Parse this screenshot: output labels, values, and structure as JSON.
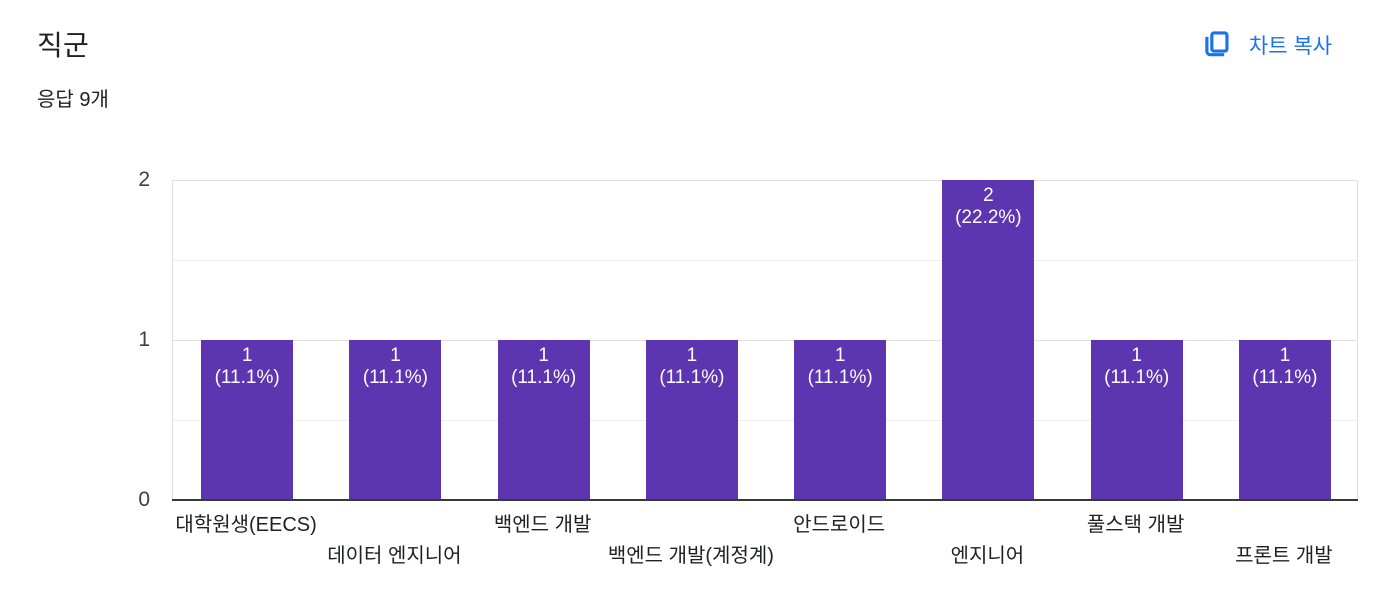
{
  "header": {
    "title": "직군",
    "subtitle": "응답 9개",
    "copy_button": {
      "label": "차트 복사",
      "icon": "copy-icon",
      "color": "#1a73e8"
    }
  },
  "chart_data": {
    "type": "bar",
    "title": "직군",
    "subtitle": "응답 9개",
    "total_responses": 9,
    "categories": [
      "대학원생(EECS)",
      "데이터 엔지니어",
      "백엔드 개발",
      "백엔드 개발(계정계)",
      "안드로이드",
      "엔지니어",
      "풀스택 개발",
      "프론트 개발"
    ],
    "values": [
      1,
      1,
      1,
      1,
      1,
      2,
      1,
      1
    ],
    "percents": [
      "11.1%",
      "11.1%",
      "11.1%",
      "11.1%",
      "11.1%",
      "22.2%",
      "11.1%",
      "11.1%"
    ],
    "xlabel": "",
    "ylabel": "",
    "ylim": [
      0,
      2
    ],
    "yticks": [
      0,
      1,
      2
    ],
    "gridline_step": 0.5,
    "legend": "none",
    "grid": "horizontal",
    "x_label_stagger": true,
    "colors": {
      "bar": "#5e35b1",
      "bar_label": "#ffffff",
      "axis_text": "#3c4043",
      "grid_major": "#e0e0e0",
      "grid_minor": "#f0f0f0",
      "baseline": "#37393b"
    }
  }
}
